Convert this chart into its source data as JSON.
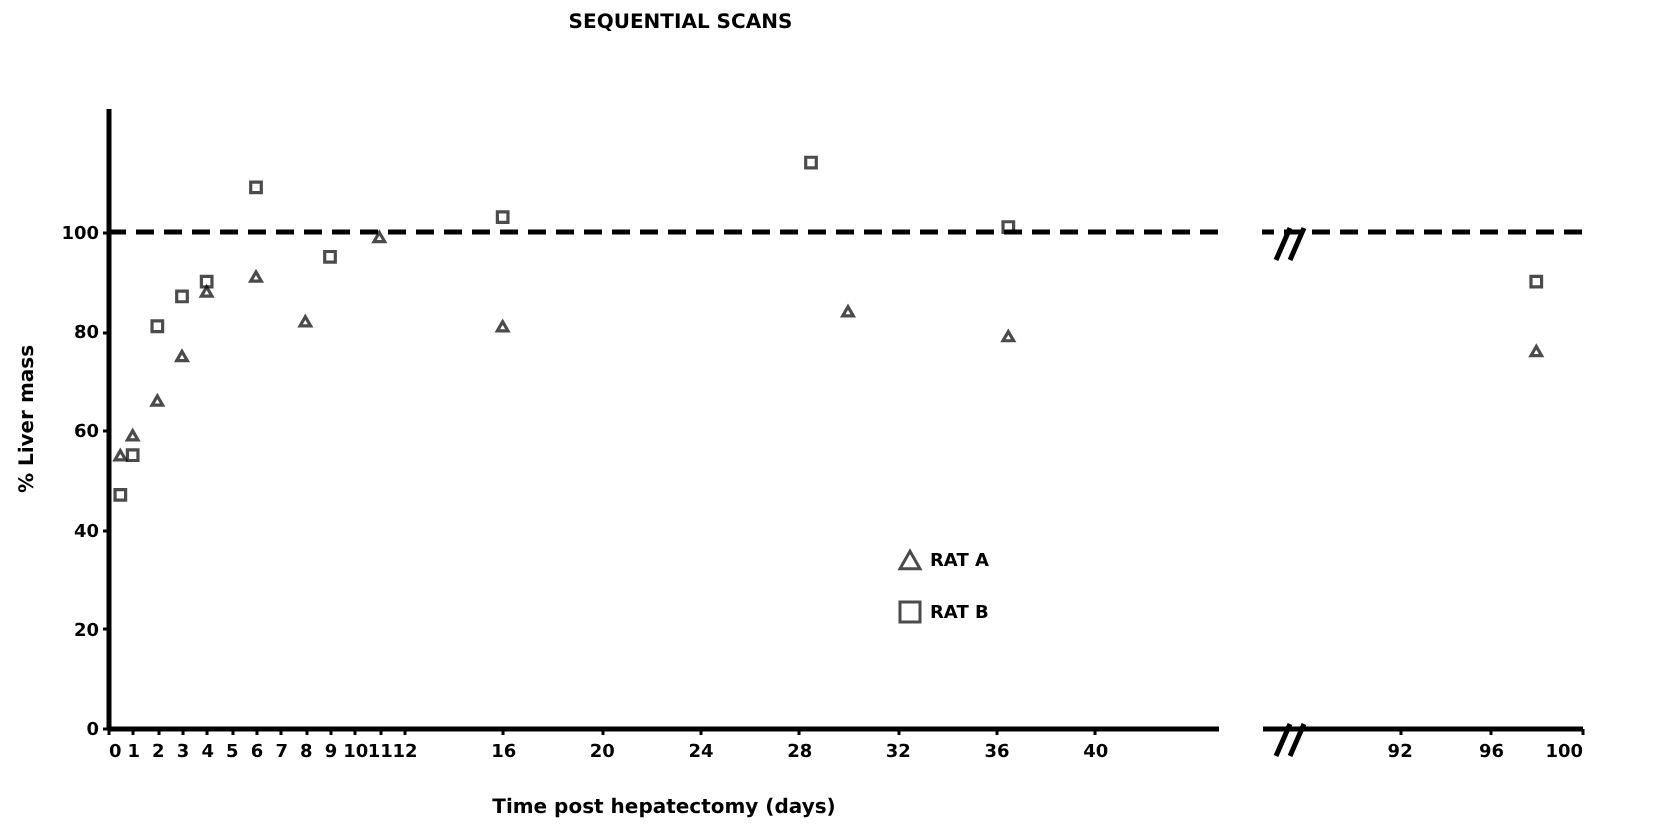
{
  "chart_data": [
    {
      "type": "scatter",
      "title": "SEQUENTIAL SCANS",
      "xlabel": "Time post hepatectomy (days)",
      "ylabel": "% Liver mass",
      "xlim": [
        0,
        45
      ],
      "xticks": [
        0,
        1,
        2,
        3,
        4,
        5,
        6,
        7,
        8,
        9,
        10,
        11,
        12,
        16,
        20,
        24,
        28,
        32,
        36,
        40
      ],
      "ylim": [
        0,
        125
      ],
      "yticks": [
        0,
        20,
        40,
        60,
        80,
        100
      ],
      "legend": "bottom",
      "ref_lines": [
        {
          "axis": "y",
          "value": 100,
          "line_style": "dashed",
          "color": "#000000"
        }
      ],
      "series": [
        {
          "name": "RAT A",
          "color": "#000000",
          "marker": "triangle",
          "x": [
            0.5,
            1,
            2,
            3,
            4,
            6,
            8,
            11,
            16,
            30,
            36.5
          ],
          "values": [
            55,
            59,
            66,
            75,
            88,
            91,
            82,
            99,
            81,
            84,
            79
          ]
        },
        {
          "name": "RAT B",
          "color": "#000000",
          "marker": "square",
          "x": [
            0.5,
            1,
            2,
            3,
            4,
            6,
            9,
            16,
            28.5,
            36.5
          ],
          "values": [
            47,
            55,
            81,
            87,
            90,
            109,
            95,
            103,
            114,
            101
          ]
        }
      ]
    },
    {
      "type": "scatter",
      "xlim": [
        86,
        100
      ],
      "xticks": [
        92,
        96,
        100
      ],
      "yticks": [
        0,
        20,
        40,
        60,
        80,
        100
      ],
      "tick_labels": "x",
      "ref_lines": [
        {
          "axis": "y",
          "value": 100,
          "line_style": "dashed",
          "color": "#000000"
        }
      ],
      "series": [
        {
          "color": "#000000",
          "marker": "triangle",
          "x": [
            98
          ],
          "values": [
            76
          ]
        },
        {
          "color": "#000000",
          "marker": "square",
          "x": [
            98
          ],
          "values": [
            90
          ]
        }
      ]
    }
  ]
}
